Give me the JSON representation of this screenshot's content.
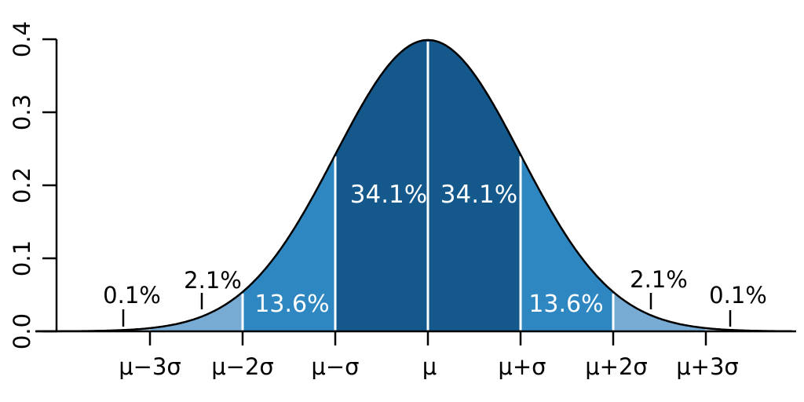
{
  "chart_data": {
    "type": "area",
    "title": "",
    "description": "Normal (Gaussian) probability density function with areas under the curve by standard deviation band",
    "xlabel": "",
    "ylabel": "",
    "ylim": [
      0,
      0.4
    ],
    "grid": false,
    "legend": false,
    "curve": {
      "distribution": "normal",
      "mean_symbol": "μ",
      "sd_symbol": "σ",
      "peak_density": 0.3989
    },
    "colors": {
      "band_1sigma": "#14588c",
      "band_2sigma": "#2e87c1",
      "band_3sigma": "#77abd4",
      "band_tail": "#a8c8e2",
      "curve_stroke": "#000000",
      "separator": "#ffffff",
      "axis": "#000000",
      "background": "#ffffff"
    },
    "y_ticks": [
      {
        "value": 0.0,
        "label": "0.0"
      },
      {
        "value": 0.1,
        "label": "0.1"
      },
      {
        "value": 0.2,
        "label": "0.2"
      },
      {
        "value": 0.3,
        "label": "0.3"
      },
      {
        "value": 0.4,
        "label": "0.4"
      }
    ],
    "x_ticks": [
      {
        "sigma": -3,
        "label": "μ−3σ"
      },
      {
        "sigma": -2,
        "label": "μ−2σ"
      },
      {
        "sigma": -1,
        "label": "μ−σ"
      },
      {
        "sigma": 0,
        "label": "μ"
      },
      {
        "sigma": 1,
        "label": "μ+σ"
      },
      {
        "sigma": 2,
        "label": "μ+2σ"
      },
      {
        "sigma": 3,
        "label": "μ+3σ"
      }
    ],
    "regions": [
      {
        "from_sigma": -4.23,
        "to_sigma": -3,
        "percent_value": 0.1,
        "percent_label": "0.1%",
        "color_key": "band_tail"
      },
      {
        "from_sigma": -3,
        "to_sigma": -2,
        "percent_value": 2.1,
        "percent_label": "2.1%",
        "color_key": "band_3sigma"
      },
      {
        "from_sigma": -2,
        "to_sigma": -1,
        "percent_value": 13.6,
        "percent_label": "13.6%",
        "color_key": "band_2sigma"
      },
      {
        "from_sigma": -1,
        "to_sigma": 0,
        "percent_value": 34.1,
        "percent_label": "34.1%",
        "color_key": "band_1sigma"
      },
      {
        "from_sigma": 0,
        "to_sigma": 1,
        "percent_value": 34.1,
        "percent_label": "34.1%",
        "color_key": "band_1sigma"
      },
      {
        "from_sigma": 1,
        "to_sigma": 2,
        "percent_value": 13.6,
        "percent_label": "13.6%",
        "color_key": "band_2sigma"
      },
      {
        "from_sigma": 2,
        "to_sigma": 3,
        "percent_value": 2.1,
        "percent_label": "2.1%",
        "color_key": "band_3sigma"
      },
      {
        "from_sigma": 3,
        "to_sigma": 3.95,
        "percent_value": 0.1,
        "percent_label": "0.1%",
        "color_key": "band_tail"
      }
    ],
    "separator_sigmas": [
      -3,
      -2,
      -1,
      0,
      1,
      2,
      3
    ]
  }
}
